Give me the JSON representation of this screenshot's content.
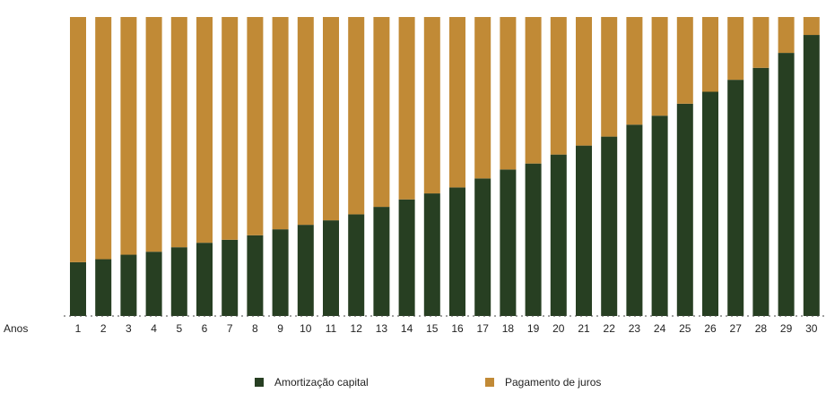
{
  "chart_data": {
    "type": "bar",
    "stacked": true,
    "percent": true,
    "axis_label": "Anos",
    "categories": [
      "1",
      "2",
      "3",
      "4",
      "5",
      "6",
      "7",
      "8",
      "9",
      "10",
      "11",
      "12",
      "13",
      "14",
      "15",
      "16",
      "17",
      "18",
      "19",
      "20",
      "21",
      "22",
      "23",
      "24",
      "25",
      "26",
      "27",
      "28",
      "29",
      "30"
    ],
    "ylim": [
      0,
      100
    ],
    "series": [
      {
        "name": "Amortização capital",
        "color": "#273f22",
        "values": [
          18,
          19,
          20.5,
          21.5,
          23,
          24.5,
          25.5,
          27,
          29,
          30.5,
          32,
          34,
          36.5,
          39,
          41,
          43,
          46,
          49,
          51,
          54,
          57,
          60,
          64,
          67,
          71,
          75,
          79,
          83,
          88,
          94
        ]
      },
      {
        "name": "Pagamento de juros",
        "color": "#c18a36",
        "values": [
          82,
          81,
          79.5,
          78.5,
          77,
          75.5,
          74.5,
          73,
          71,
          69.5,
          68,
          66,
          63.5,
          61,
          59,
          57,
          54,
          51,
          49,
          46,
          43,
          40,
          36,
          33,
          29,
          25,
          21,
          17,
          12,
          6
        ]
      }
    ],
    "legend_position": "bottom"
  }
}
